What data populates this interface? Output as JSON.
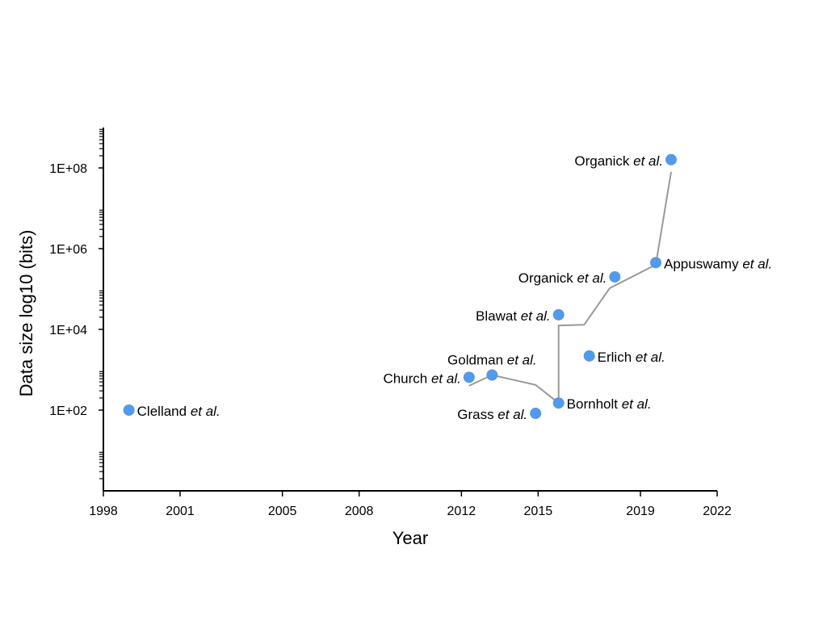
{
  "chart_data": {
    "type": "scatter",
    "title": "",
    "xlabel": "Year",
    "ylabel": "Data size log10 (bits)",
    "xlim": [
      1998,
      2022
    ],
    "ylim_log10": [
      0,
      9
    ],
    "y_scale": "log",
    "xticks": [
      1998,
      2001,
      2005,
      2008,
      2012,
      2015,
      2019,
      2022
    ],
    "yticks": [
      "1E+02",
      "1E+04",
      "1E+06",
      "1E+08"
    ],
    "ytick_values": [
      100,
      10000,
      1000000,
      100000000
    ],
    "grid": false,
    "legend": "none",
    "marker_color": "#4b9cf2",
    "line_color": "#999999",
    "points": [
      {
        "author": "Clelland",
        "suffix": "et al.",
        "x": 1999.0,
        "y": 100,
        "label_side": "right"
      },
      {
        "author": "Church",
        "suffix": "et al.",
        "x": 2012.3,
        "y": 650,
        "label_side": "left"
      },
      {
        "author": "Goldman",
        "suffix": "et al.",
        "x": 2013.2,
        "y": 740,
        "label_side": "above"
      },
      {
        "author": "Grass",
        "suffix": "et al.",
        "x": 2014.9,
        "y": 83,
        "label_side": "left"
      },
      {
        "author": "Bornholt",
        "suffix": "et al.",
        "x": 2015.8,
        "y": 150,
        "label_side": "right"
      },
      {
        "author": "Blawat",
        "suffix": "et al.",
        "x": 2015.8,
        "y": 23000,
        "label_side": "left"
      },
      {
        "author": "Erlich",
        "suffix": "et al.",
        "x": 2017.0,
        "y": 2200,
        "label_side": "right"
      },
      {
        "author": "Organick",
        "suffix": "et al.",
        "x": 2018.0,
        "y": 200000,
        "label_side": "left"
      },
      {
        "author": "Appuswamy",
        "suffix": "et al.",
        "x": 2019.6,
        "y": 450000,
        "label_side": "right"
      },
      {
        "author": "Organick",
        "suffix": "et al.",
        "x": 2020.2,
        "y": 160000000,
        "label_side": "left"
      }
    ],
    "trend_line": [
      {
        "x": 2012.3,
        "y": 400
      },
      {
        "x": 2013.2,
        "y": 740
      },
      {
        "x": 2014.9,
        "y": 420
      },
      {
        "x": 2015.8,
        "y": 150
      },
      {
        "x": 2015.8,
        "y": 12500
      },
      {
        "x": 2016.8,
        "y": 13000
      },
      {
        "x": 2017.8,
        "y": 105000
      },
      {
        "x": 2019.6,
        "y": 400000
      },
      {
        "x": 2020.2,
        "y": 80000000
      }
    ]
  }
}
